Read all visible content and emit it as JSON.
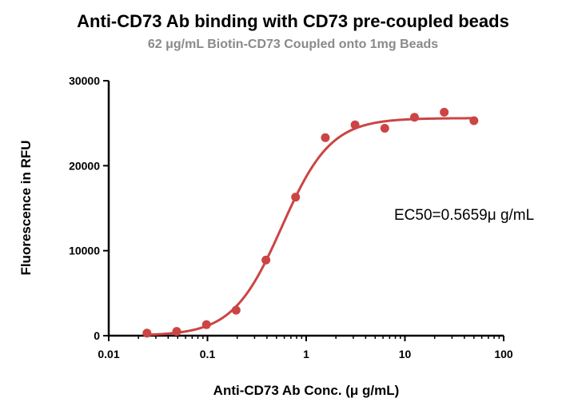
{
  "chart_data": {
    "type": "scatter",
    "title": "Anti-CD73 Ab binding with CD73 pre-coupled beads",
    "subtitle": "62 μg/mL Biotin-CD73 Coupled onto 1mg Beads",
    "xlabel": "Anti-CD73 Ab Conc. (μ g/mL)",
    "ylabel": "Fluorescence in RFU",
    "x_scale": "log",
    "xlim": [
      0.01,
      100
    ],
    "ylim": [
      0,
      30000
    ],
    "x_ticks": [
      "0.01",
      "0.1",
      "1",
      "10",
      "100"
    ],
    "y_ticks": [
      "0",
      "10000",
      "20000",
      "30000"
    ],
    "grid": false,
    "annotation": "EC50=0.5659μ g/mL",
    "series_color": "#cc4444",
    "series": [
      {
        "x": [
          0.0244,
          0.0488,
          0.0977,
          0.195,
          0.391,
          0.781,
          1.5625,
          3.125,
          6.25,
          12.5,
          25,
          50
        ],
        "y": [
          300,
          500,
          1300,
          3000,
          8900,
          16300,
          23300,
          24800,
          24400,
          25700,
          26300,
          25300
        ]
      }
    ],
    "fit": {
      "model": "sigmoidal",
      "bottom": 0,
      "top": 25600,
      "ec50": 0.5659,
      "hill_slope": 1.75
    }
  }
}
